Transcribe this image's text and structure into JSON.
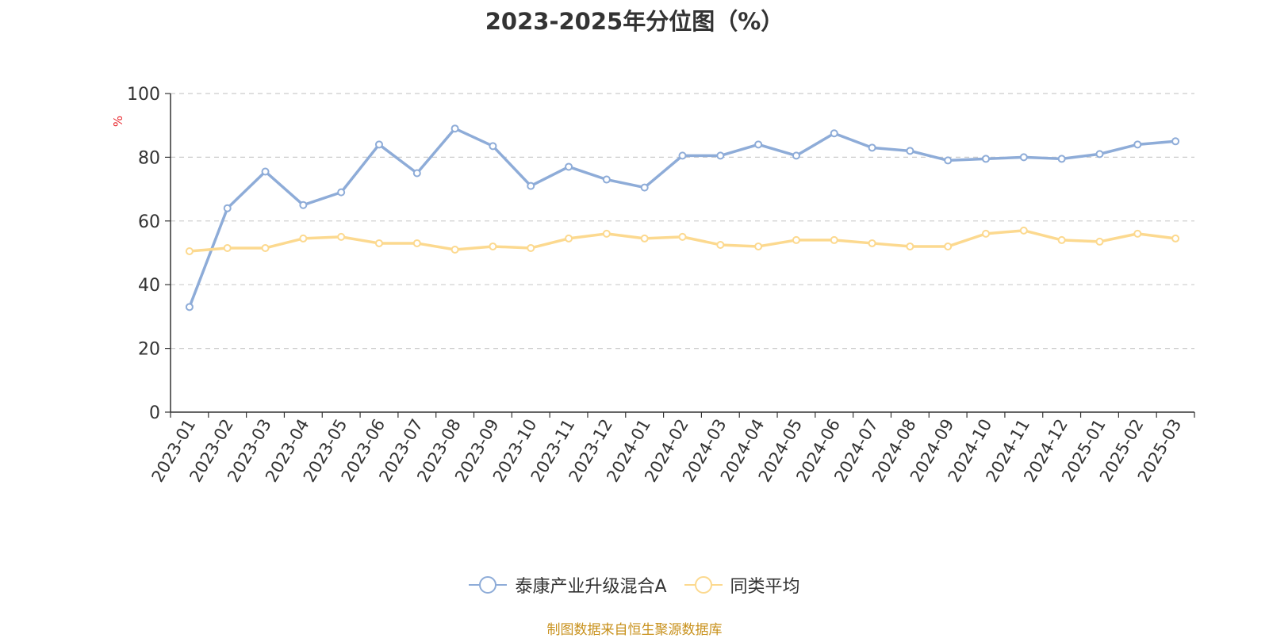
{
  "chart_data": {
    "type": "line",
    "title": "2023-2025年分位图（%）",
    "ylabel": "%",
    "xlabel": "",
    "ylim": [
      0,
      100
    ],
    "yticks": [
      "0",
      "20",
      "40",
      "60",
      "80",
      "100"
    ],
    "grid": true,
    "legend_position": "bottom",
    "categories": [
      "2023-01",
      "2023-02",
      "2023-03",
      "2023-04",
      "2023-05",
      "2023-06",
      "2023-07",
      "2023-08",
      "2023-09",
      "2023-10",
      "2023-11",
      "2023-12",
      "2024-01",
      "2024-02",
      "2024-03",
      "2024-04",
      "2024-05",
      "2024-06",
      "2024-07",
      "2024-08",
      "2024-09",
      "2024-10",
      "2024-11",
      "2024-12",
      "2025-01",
      "2025-02",
      "2025-03"
    ],
    "series": [
      {
        "name": "泰康产业升级混合A",
        "color": "#8eacd8",
        "values": [
          33,
          64,
          75.5,
          65,
          69,
          84,
          75,
          89,
          83.5,
          71,
          77,
          73,
          70.5,
          80.5,
          80.5,
          84,
          80.5,
          87.5,
          83,
          82,
          79,
          79.5,
          80,
          79.5,
          81,
          84,
          85
        ]
      },
      {
        "name": "同类平均",
        "color": "#fcd98f",
        "values": [
          50.5,
          51.5,
          51.5,
          54.5,
          55,
          53,
          53,
          51,
          52,
          51.5,
          54.5,
          56,
          54.5,
          55,
          52.5,
          52,
          54,
          54,
          53,
          52,
          52,
          56,
          57,
          54,
          53.5,
          56,
          54.5
        ]
      }
    ]
  },
  "source_text": "制图数据来自恒生聚源数据库"
}
